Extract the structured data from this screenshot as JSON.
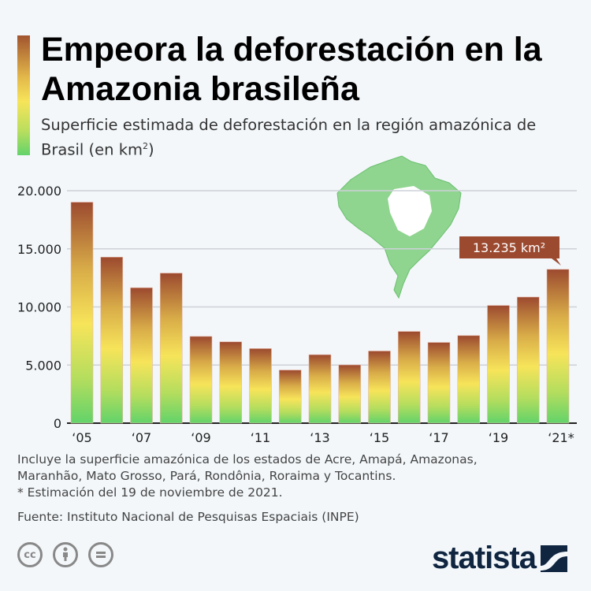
{
  "header": {
    "title": "Empeora la deforestación en la Amazonia brasileña",
    "subtitle": "Superficie estimada de deforestación en la región amazónica de Brasil (en km",
    "subtitle_sup": "2",
    "subtitle_end": ")"
  },
  "chart_data": {
    "type": "bar",
    "categories": [
      "2005",
      "2006",
      "2007",
      "2008",
      "2009",
      "2010",
      "2011",
      "2012",
      "2013",
      "2014",
      "2015",
      "2016",
      "2017",
      "2018",
      "2019",
      "2020",
      "2021*"
    ],
    "values": [
      19014,
      14286,
      11651,
      12911,
      7464,
      7000,
      6418,
      4571,
      5891,
      5012,
      6207,
      7893,
      6947,
      7536,
      10129,
      10851,
      13235
    ],
    "x_tick_labels": [
      {
        "index": 0,
        "label": "‘05"
      },
      {
        "index": 2,
        "label": "‘07"
      },
      {
        "index": 4,
        "label": "‘09"
      },
      {
        "index": 6,
        "label": "‘11"
      },
      {
        "index": 8,
        "label": "‘13"
      },
      {
        "index": 10,
        "label": "‘15"
      },
      {
        "index": 12,
        "label": "‘17"
      },
      {
        "index": 14,
        "label": "‘19"
      },
      {
        "index": 16,
        "label": "‘21*"
      }
    ],
    "y_ticks": [
      {
        "v": 0,
        "label": "0"
      },
      {
        "v": 5000,
        "label": "5.000"
      },
      {
        "v": 10000,
        "label": "10.000"
      },
      {
        "v": 15000,
        "label": "15.000"
      },
      {
        "v": 20000,
        "label": "20.000"
      }
    ],
    "ylim": [
      0,
      20000
    ],
    "grid": true,
    "annotation": {
      "index": 16,
      "label": "13.235 km²"
    },
    "colors": {
      "top": "#9c4a2f",
      "mid": "#f7e45a",
      "bottom": "#62d36a",
      "annotation_bg": "#9c4a2f",
      "map": "#8fd48f"
    }
  },
  "footer": {
    "note1": "Incluye la superficie amazónica de los estados de Acre, Amapá, Amazonas,",
    "note2": "Maranhão, Mato Grosso, Pará, Rondônia, Roraima y Tocantins.",
    "note3": "* Estimación del 19 de noviembre de 2021.",
    "source": "Fuente: Instituto Nacional de Pesquisas Espaciais (INPE)"
  },
  "license": {
    "cc": "cc",
    "icons": [
      "cc-icon",
      "by-icon",
      "nd-icon"
    ]
  },
  "brand": {
    "logo": "statista"
  }
}
